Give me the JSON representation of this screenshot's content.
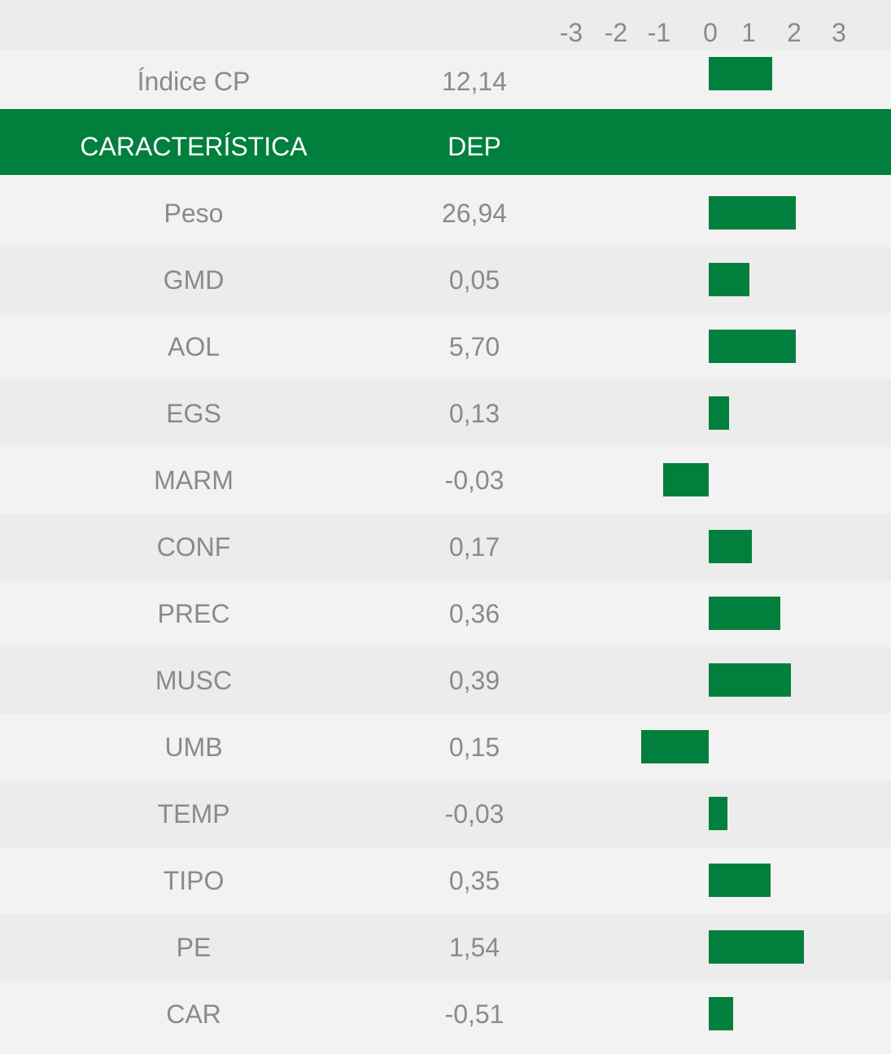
{
  "colors": {
    "bar": "#007f3d",
    "header_bg": "#007f3d",
    "row_light": "#f2f2f2",
    "row_dark": "#ececec",
    "text": "#8a8a8a"
  },
  "chart_data": {
    "type": "bar",
    "orientation": "horizontal",
    "axis_ticks": [
      "-3",
      "-2",
      "-1",
      "0",
      "1",
      "2",
      "3"
    ],
    "xlim": [
      -3,
      3
    ],
    "index_row": {
      "label": "Índice CP",
      "dep": "12,14",
      "value": 1.45
    },
    "header": {
      "col1": "CARACTERÍSTICA",
      "col2": "DEP"
    },
    "rows": [
      {
        "label": "Peso",
        "dep": "26,94",
        "value": 1.98
      },
      {
        "label": "GMD",
        "dep": "0,05",
        "value": 0.93
      },
      {
        "label": "AOL",
        "dep": "5,70",
        "value": 1.98
      },
      {
        "label": "EGS",
        "dep": "0,13",
        "value": 0.47
      },
      {
        "label": "MARM",
        "dep": "-0,03",
        "value": -1.04
      },
      {
        "label": "CONF",
        "dep": "0,17",
        "value": 0.98
      },
      {
        "label": "PREC",
        "dep": "0,36",
        "value": 1.63
      },
      {
        "label": "MUSC",
        "dep": "0,39",
        "value": 1.87
      },
      {
        "label": "UMB",
        "dep": "0,15",
        "value": -1.53
      },
      {
        "label": "TEMP",
        "dep": "-0,03",
        "value": 0.42
      },
      {
        "label": "TIPO",
        "dep": "0,35",
        "value": 1.41
      },
      {
        "label": "PE",
        "dep": "1,54",
        "value": 2.17
      },
      {
        "label": "CAR",
        "dep": "-0,51",
        "value": 0.55
      }
    ]
  }
}
